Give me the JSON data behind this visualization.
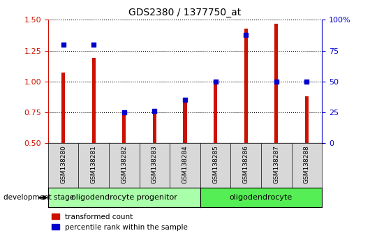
{
  "title": "GDS2380 / 1377750_at",
  "categories": [
    "GSM138280",
    "GSM138281",
    "GSM138282",
    "GSM138283",
    "GSM138284",
    "GSM138285",
    "GSM138286",
    "GSM138287",
    "GSM138288"
  ],
  "red_values": [
    1.07,
    1.19,
    0.75,
    0.75,
    0.85,
    1.0,
    1.43,
    1.47,
    0.88
  ],
  "blue_values": [
    80,
    80,
    25,
    26,
    35,
    50,
    88,
    50,
    50
  ],
  "ylim_left": [
    0.5,
    1.5
  ],
  "ylim_right": [
    0,
    100
  ],
  "yticks_left": [
    0.5,
    0.75,
    1.0,
    1.25,
    1.5
  ],
  "yticks_right": [
    0,
    25,
    50,
    75,
    100
  ],
  "ytick_labels_right": [
    "0",
    "25",
    "50",
    "75",
    "100%"
  ],
  "red_color": "#cc1100",
  "blue_color": "#0000cc",
  "bar_width": 0.12,
  "group1_label": "oligodendrocyte progenitor",
  "group1_count": 5,
  "group2_label": "oligodendrocyte",
  "group2_count": 4,
  "group1_color": "#aaffaa",
  "group2_color": "#55ee55",
  "xtick_bg_color": "#d8d8d8",
  "legend_red": "transformed count",
  "legend_blue": "percentile rank within the sample",
  "dev_stage_label": "development stage",
  "background_color": "#ffffff",
  "plot_bg_color": "#ffffff",
  "title_color": "#000000",
  "dotted_line_color": "#000000"
}
